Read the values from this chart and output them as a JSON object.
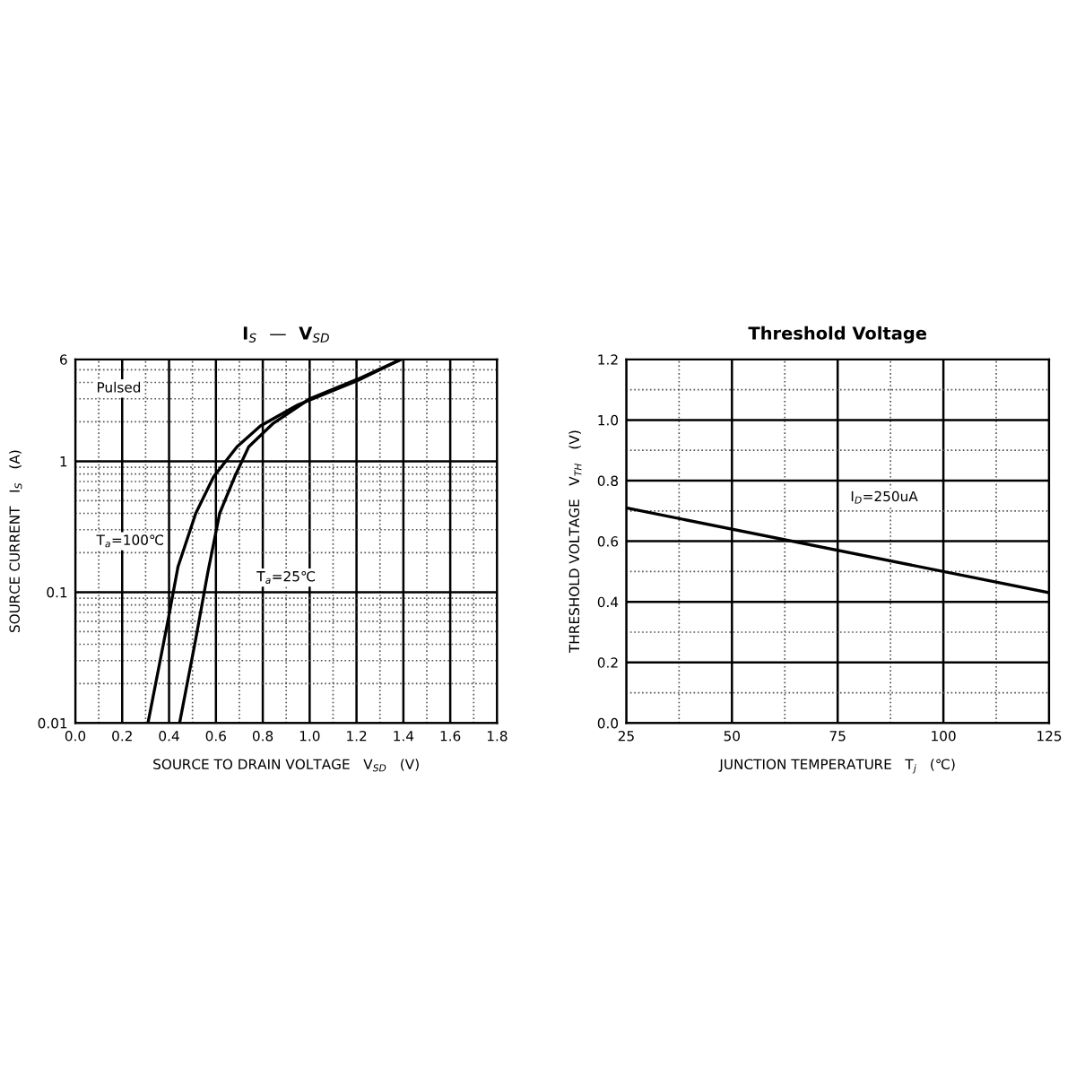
{
  "chart_data": [
    {
      "type": "line",
      "title": "I$_{S}$  —  V$_{SD}$",
      "xlabel": "SOURCE TO DRAIN VOLTAGE   V$_{SD}$   (V)",
      "ylabel": "SOURCE CURRENT   I$_{S}$   (A)",
      "log": "y",
      "grid": true,
      "legend": false,
      "marker": "none",
      "line_style": "solid",
      "xlim": [
        0,
        1.8
      ],
      "ylim": [
        0.01,
        6
      ],
      "xticks": [
        {
          "value": 0,
          "label": "0.0"
        },
        {
          "value": 0.1,
          "label": null
        },
        {
          "value": 0.2,
          "label": "0.2"
        },
        {
          "value": 0.3,
          "label": null
        },
        {
          "value": 0.4,
          "label": "0.4"
        },
        {
          "value": 0.5,
          "label": null
        },
        {
          "value": 0.6,
          "label": "0.6"
        },
        {
          "value": 0.7,
          "label": null
        },
        {
          "value": 0.8,
          "label": "0.8"
        },
        {
          "value": 0.9,
          "label": null
        },
        {
          "value": 1.0,
          "label": "1.0"
        },
        {
          "value": 1.1,
          "label": null
        },
        {
          "value": 1.2,
          "label": "1.2"
        },
        {
          "value": 1.3,
          "label": null
        },
        {
          "value": 1.4,
          "label": "1.4"
        },
        {
          "value": 1.5,
          "label": null
        },
        {
          "value": 1.6,
          "label": "1.6"
        },
        {
          "value": 1.7,
          "label": null
        },
        {
          "value": 1.8,
          "label": "1.8"
        }
      ],
      "yticks": [
        0.01,
        {
          "value": 0.02,
          "label": null
        },
        {
          "value": 0.03,
          "label": null
        },
        {
          "value": 0.04,
          "label": null
        },
        {
          "value": 0.05,
          "label": null
        },
        {
          "value": 0.06,
          "label": null
        },
        {
          "value": 0.07,
          "label": null
        },
        {
          "value": 0.08,
          "label": null
        },
        {
          "value": 0.09,
          "label": null
        },
        0.1,
        {
          "value": 0.2,
          "label": null
        },
        {
          "value": 0.3,
          "label": null
        },
        {
          "value": 0.4,
          "label": null
        },
        {
          "value": 0.5,
          "label": null
        },
        {
          "value": 0.6,
          "label": null
        },
        {
          "value": 0.7,
          "label": null
        },
        {
          "value": 0.8,
          "label": null
        },
        {
          "value": 0.9,
          "label": null
        },
        1,
        {
          "value": 2,
          "label": null
        },
        {
          "value": 3,
          "label": null
        },
        {
          "value": 4,
          "label": null
        },
        {
          "value": 5,
          "label": null
        },
        6
      ],
      "series": [
        {
          "color": "#000000",
          "x": [
            0.31,
            0.4,
            0.438,
            0.514,
            0.59,
            0.69,
            0.79,
            0.95,
            1.2,
            1.39
          ],
          "values": [
            0.01,
            0.067,
            0.156,
            0.4,
            0.76,
            1.29,
            1.86,
            2.7,
            4.1,
            6
          ]
        },
        {
          "color": "#000000",
          "x": [
            0.445,
            0.514,
            0.565,
            0.616,
            0.68,
            0.74,
            0.845,
            1.0,
            1.2,
            1.39
          ],
          "values": [
            0.01,
            0.044,
            0.14,
            0.4,
            0.76,
            1.29,
            1.95,
            3.0,
            4.2,
            6
          ]
        }
      ],
      "annotations": [
        "Pulsed",
        "T$_{a}$=100℃",
        "T$_{a}$=25℃"
      ]
    },
    {
      "type": "line",
      "title": "Threshold Voltage",
      "xlabel": "JUNCTION TEMPERATURE   T$_{j}$   (℃)",
      "ylabel": "THRESHOLD VOLTAGE   V$_{TH}$   (V)",
      "grid": true,
      "legend": false,
      "marker": "none",
      "line_style": "solid",
      "xlim": [
        25,
        125
      ],
      "ylim": [
        0,
        1.2
      ],
      "xticks": [
        25,
        {
          "value": 37.5,
          "label": null
        },
        50,
        {
          "value": 62.5,
          "label": null
        },
        75,
        {
          "value": 87.5,
          "label": null
        },
        100,
        {
          "value": 112.5,
          "label": null
        },
        125
      ],
      "yticks": [
        {
          "value": 0,
          "label": "0.0"
        },
        {
          "value": 0.1,
          "label": null
        },
        {
          "value": 0.2,
          "label": "0.2"
        },
        {
          "value": 0.3,
          "label": null
        },
        {
          "value": 0.4,
          "label": "0.4"
        },
        {
          "value": 0.5,
          "label": null
        },
        {
          "value": 0.6,
          "label": "0.6"
        },
        {
          "value": 0.7,
          "label": null
        },
        {
          "value": 0.8,
          "label": "0.8"
        },
        {
          "value": 0.9,
          "label": null
        },
        {
          "value": 1.0,
          "label": "1.0"
        },
        {
          "value": 1.1,
          "label": null
        },
        {
          "value": 1.2,
          "label": "1.2"
        }
      ],
      "series": [
        {
          "color": "#000000",
          "x": [
            25,
            125
          ],
          "values": [
            0.71,
            0.43
          ]
        }
      ],
      "annotations": [
        "I$_{D}$=250uA"
      ]
    }
  ]
}
